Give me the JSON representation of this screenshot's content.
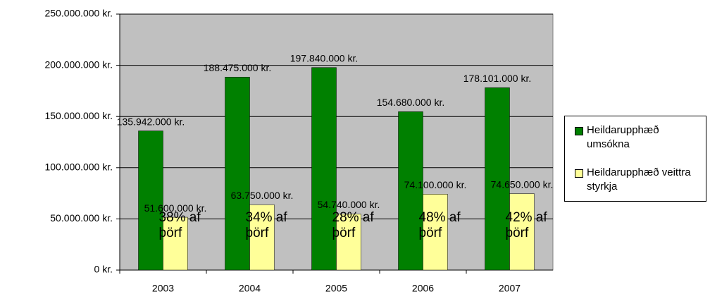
{
  "chart_data": {
    "type": "bar",
    "categories": [
      "2003",
      "2004",
      "2005",
      "2006",
      "2007"
    ],
    "series": [
      {
        "name": "Heildarupphæð umsókna",
        "color": "#008000",
        "values": [
          135942000,
          188475000,
          197840000,
          154680000,
          178101000
        ],
        "value_labels": [
          "135.942.000 kr.",
          "188.475.000 kr.",
          "197.840.000 kr.",
          "154.680.000 kr.",
          "178.101.000 kr."
        ]
      },
      {
        "name": "Heildarupphæð veittra styrkja",
        "color": "#ffff99",
        "values": [
          51600000,
          63750000,
          54740000,
          74100000,
          74650000
        ],
        "value_labels": [
          "51.600.000 kr.",
          "63.750.000 kr.",
          "54.740.000 kr.",
          "74.100.000 kr.",
          "74.650.000 kr."
        ]
      }
    ],
    "annotations": [
      "38% af þörf",
      "34% af þörf",
      "28% af þörf",
      "48% af þörf",
      "42% af þörf"
    ],
    "ylim": [
      0,
      250000000
    ],
    "yticks": [
      {
        "value": 0,
        "label": "0 kr."
      },
      {
        "value": 50000000,
        "label": "50.000.000 kr."
      },
      {
        "value": 100000000,
        "label": "100.000.000 kr."
      },
      {
        "value": 150000000,
        "label": "150.000.000 kr."
      },
      {
        "value": 200000000,
        "label": "200.000.000 kr."
      },
      {
        "value": 250000000,
        "label": "250.000.000 kr."
      }
    ],
    "grid": true,
    "plot_background": "#c0c0c0",
    "legend": "right"
  }
}
